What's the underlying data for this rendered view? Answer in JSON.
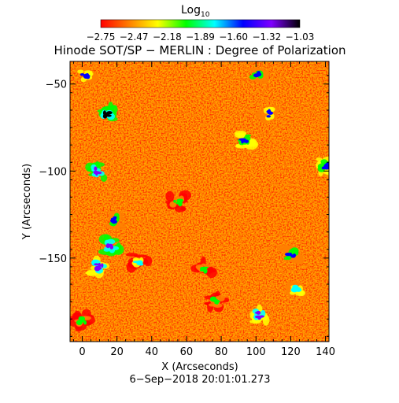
{
  "chart_data": {
    "type": "heatmap",
    "title": "Hinode SOT/SP − MERLIN : Degree of Polarization",
    "xlabel": "X (Arcseconds)",
    "ylabel": "Y (Arcseconds)",
    "date_label": "6−Sep−2018 20:01:01.273",
    "colorbar": {
      "label": "Log",
      "label_subscript": "10",
      "tick_labels": [
        "−2.75",
        "−2.47",
        "−2.18",
        "−1.89",
        "−1.60",
        "−1.32",
        "−1.03"
      ],
      "range": [
        -2.75,
        -1.03
      ],
      "colormap": [
        "#ff0000",
        "#ff7f00",
        "#ffff00",
        "#00ff00",
        "#00ffff",
        "#0000ff",
        "#7f00ff",
        "#000000"
      ]
    },
    "xlim": [
      -7,
      142
    ],
    "ylim": [
      -198,
      -37
    ],
    "x_ticks": [
      0,
      20,
      40,
      60,
      80,
      100,
      120,
      140
    ],
    "y_ticks": [
      -50,
      -100,
      -150
    ],
    "x_tick_labels": [
      "0",
      "20",
      "40",
      "60",
      "80",
      "100",
      "120",
      "140"
    ],
    "y_tick_labels": [
      "−50",
      "−100",
      "−150"
    ],
    "background_level": -2.6,
    "features": [
      {
        "x": 14,
        "y": -67,
        "level": -1.1
      },
      {
        "x": 8,
        "y": -100,
        "level": -1.2
      },
      {
        "x": 17,
        "y": -128,
        "level": -1.5
      },
      {
        "x": 16,
        "y": -143,
        "level": -1.2
      },
      {
        "x": 10,
        "y": -155,
        "level": -1.3
      },
      {
        "x": 2,
        "y": -45,
        "level": -1.6
      },
      {
        "x": 93,
        "y": -82,
        "level": -1.4
      },
      {
        "x": 100,
        "y": -45,
        "level": -1.5
      },
      {
        "x": 107,
        "y": -67,
        "level": -1.6
      },
      {
        "x": 120,
        "y": -148,
        "level": -1.5
      },
      {
        "x": 124,
        "y": -168,
        "level": -1.7
      },
      {
        "x": 102,
        "y": -183,
        "level": -1.3
      },
      {
        "x": 77,
        "y": -175,
        "level": -1.9
      },
      {
        "x": 70,
        "y": -156,
        "level": -1.9
      },
      {
        "x": 140,
        "y": -97,
        "level": -1.4
      },
      {
        "x": 33,
        "y": -152,
        "level": -1.8
      },
      {
        "x": 55,
        "y": -118,
        "level": -2.0
      },
      {
        "x": 0,
        "y": -186,
        "level": -2.0
      }
    ]
  }
}
